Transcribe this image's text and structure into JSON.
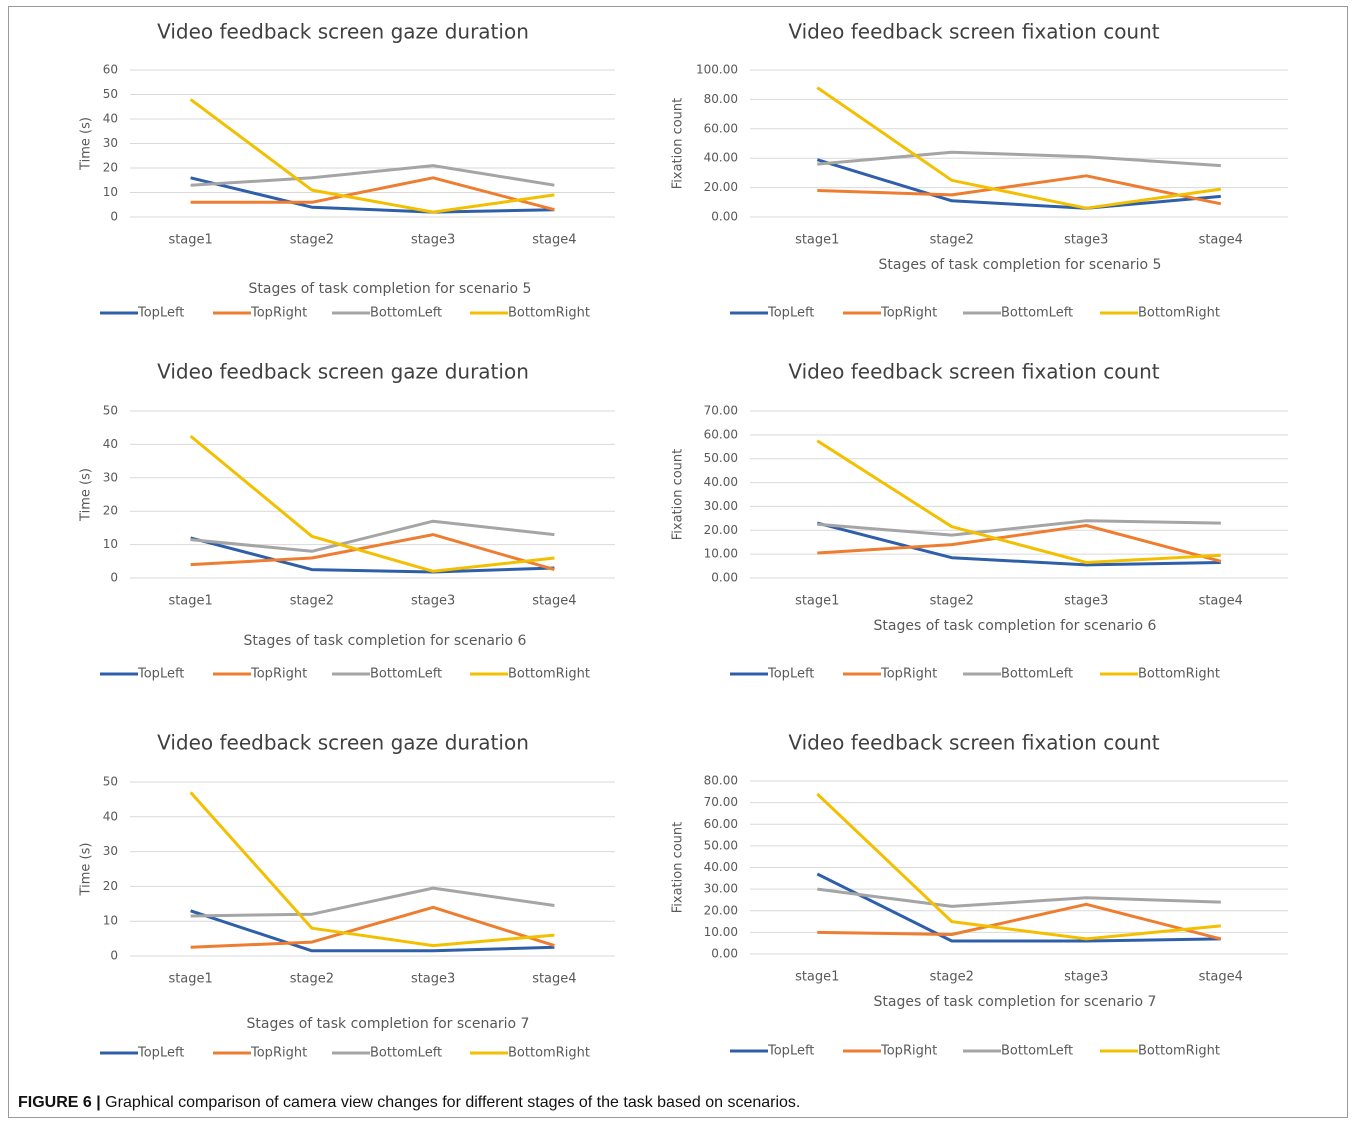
{
  "colors": {
    "TopLeft": "#2f5fa8",
    "TopRight": "#ed7d31",
    "BottomLeft": "#a5a5a5",
    "BottomRight": "#f2c000"
  },
  "legend_order": [
    "TopLeft",
    "TopRight",
    "BottomLeft",
    "BottomRight"
  ],
  "caption": {
    "label": "FIGURE 6 |",
    "text": "Graphical comparison of camera view changes for different stages of the task based on scenarios."
  },
  "chart_data": [
    {
      "type": "line",
      "title": "Video feedback screen gaze duration",
      "xlabel": "Stages of task completion for scenario 5",
      "ylabel": "Time (s)",
      "categories": [
        "stage1",
        "stage2",
        "stage3",
        "stage4"
      ],
      "ylim": [
        0,
        60
      ],
      "yticks": [
        "0",
        "10",
        "20",
        "30",
        "40",
        "50",
        "60"
      ],
      "series": [
        {
          "name": "TopLeft",
          "values": [
            16,
            4,
            2,
            3
          ]
        },
        {
          "name": "TopRight",
          "values": [
            6,
            6,
            16,
            3
          ]
        },
        {
          "name": "BottomLeft",
          "values": [
            13,
            16,
            21,
            13
          ]
        },
        {
          "name": "BottomRight",
          "values": [
            48,
            11,
            2,
            9
          ]
        }
      ]
    },
    {
      "type": "line",
      "title": "Video feedback screen fixation count",
      "xlabel": "Stages of task completion for scenario 5",
      "ylabel": "Fixation count",
      "categories": [
        "stage1",
        "stage2",
        "stage3",
        "stage4"
      ],
      "ylim": [
        0,
        100
      ],
      "yticks": [
        "0.00",
        "20.00",
        "40.00",
        "60.00",
        "80.00",
        "100.00"
      ],
      "series": [
        {
          "name": "TopLeft",
          "values": [
            39,
            11,
            6,
            14
          ]
        },
        {
          "name": "TopRight",
          "values": [
            18,
            15,
            28,
            9
          ]
        },
        {
          "name": "BottomLeft",
          "values": [
            36,
            44,
            41,
            35
          ]
        },
        {
          "name": "BottomRight",
          "values": [
            88,
            25,
            6,
            19
          ]
        }
      ]
    },
    {
      "type": "line",
      "title": "Video feedback screen gaze duration",
      "xlabel": "Stages of task completion for scenario 6",
      "ylabel": "Time (s)",
      "categories": [
        "stage1",
        "stage2",
        "stage3",
        "stage4"
      ],
      "ylim": [
        0,
        50
      ],
      "yticks": [
        "0",
        "10",
        "20",
        "30",
        "40",
        "50"
      ],
      "series": [
        {
          "name": "TopLeft",
          "values": [
            12,
            2.5,
            1.8,
            3
          ]
        },
        {
          "name": "TopRight",
          "values": [
            4,
            6,
            13,
            2.5
          ]
        },
        {
          "name": "BottomLeft",
          "values": [
            11.5,
            8,
            17,
            13
          ]
        },
        {
          "name": "BottomRight",
          "values": [
            42.5,
            12.5,
            2,
            6
          ]
        }
      ]
    },
    {
      "type": "line",
      "title": "Video feedback screen fixation count",
      "xlabel": "Stages of task completion for scenario 6",
      "ylabel": "Fixation count",
      "categories": [
        "stage1",
        "stage2",
        "stage3",
        "stage4"
      ],
      "ylim": [
        0,
        70
      ],
      "yticks": [
        "0.00",
        "10.00",
        "20.00",
        "30.00",
        "40.00",
        "50.00",
        "60.00",
        "70.00"
      ],
      "series": [
        {
          "name": "TopLeft",
          "values": [
            23,
            8.5,
            5.5,
            6.5
          ]
        },
        {
          "name": "TopRight",
          "values": [
            10.5,
            14,
            22,
            7
          ]
        },
        {
          "name": "BottomLeft",
          "values": [
            22.5,
            18,
            24,
            23
          ]
        },
        {
          "name": "BottomRight",
          "values": [
            57.5,
            21.5,
            6.5,
            9.5
          ]
        }
      ]
    },
    {
      "type": "line",
      "title": "Video feedback screen gaze duration",
      "xlabel": "Stages of task completion for scenario 7",
      "ylabel": "Time (s)",
      "categories": [
        "stage1",
        "stage2",
        "stage3",
        "stage4"
      ],
      "ylim": [
        0,
        50
      ],
      "yticks": [
        "0",
        "10",
        "20",
        "30",
        "40",
        "50"
      ],
      "series": [
        {
          "name": "TopLeft",
          "values": [
            13,
            1.5,
            1.5,
            2.5
          ]
        },
        {
          "name": "TopRight",
          "values": [
            2.5,
            4,
            14,
            3
          ]
        },
        {
          "name": "BottomLeft",
          "values": [
            11.5,
            12,
            19.5,
            14.5
          ]
        },
        {
          "name": "BottomRight",
          "values": [
            47,
            8,
            3,
            6
          ]
        }
      ]
    },
    {
      "type": "line",
      "title": "Video feedback screen fixation count",
      "xlabel": "Stages of task completion for scenario 7",
      "ylabel": "Fixation count",
      "categories": [
        "stage1",
        "stage2",
        "stage3",
        "stage4"
      ],
      "ylim": [
        0,
        80
      ],
      "yticks": [
        "0.00",
        "10.00",
        "20.00",
        "30.00",
        "40.00",
        "50.00",
        "60.00",
        "70.00",
        "80.00"
      ],
      "series": [
        {
          "name": "TopLeft",
          "values": [
            37,
            6,
            6,
            7
          ]
        },
        {
          "name": "TopRight",
          "values": [
            10,
            9,
            23,
            7
          ]
        },
        {
          "name": "BottomLeft",
          "values": [
            30,
            22,
            26,
            24
          ]
        },
        {
          "name": "BottomRight",
          "values": [
            74,
            15,
            7,
            13
          ]
        }
      ]
    }
  ]
}
